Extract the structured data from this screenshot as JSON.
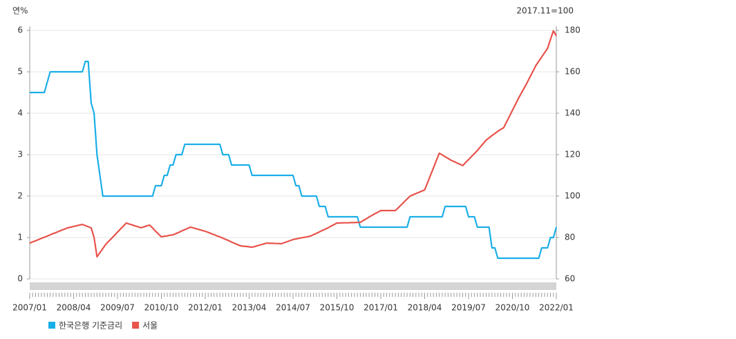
{
  "chart_data": {
    "type": "line",
    "y_label": "연%",
    "y2_label": "2017.11=100",
    "categories": [
      "2007/01",
      null,
      null,
      null,
      null,
      null,
      null,
      null,
      null,
      null,
      null,
      null,
      null,
      null,
      null,
      "2008/04",
      null,
      null,
      null,
      null,
      null,
      null,
      null,
      null,
      null,
      null,
      null,
      null,
      null,
      null,
      "2009/07",
      null,
      null,
      null,
      null,
      null,
      null,
      null,
      null,
      null,
      null,
      null,
      null,
      null,
      null,
      "2010/10",
      null,
      null,
      null,
      null,
      null,
      null,
      null,
      null,
      null,
      null,
      null,
      null,
      null,
      null,
      "2012/01",
      null,
      null,
      null,
      null,
      null,
      null,
      null,
      null,
      null,
      null,
      null,
      null,
      null,
      null,
      "2013/04",
      null,
      null,
      null,
      null,
      null,
      null,
      null,
      null,
      null,
      null,
      null,
      null,
      null,
      null,
      "2014/07",
      null,
      null,
      null,
      null,
      null,
      null,
      null,
      null,
      null,
      null,
      null,
      null,
      null,
      null,
      "2015/10",
      null,
      null,
      null,
      null,
      null,
      null,
      null,
      null,
      null,
      null,
      null,
      null,
      null,
      null,
      "2017/01",
      null,
      null,
      null,
      null,
      null,
      null,
      null,
      null,
      null,
      null,
      null,
      null,
      null,
      null,
      "2018/04",
      null,
      null,
      null,
      null,
      null,
      null,
      null,
      null,
      null,
      null,
      null,
      null,
      null,
      null,
      "2019/07",
      null,
      null,
      null,
      null,
      null,
      null,
      null,
      null,
      null,
      null,
      null,
      null,
      null,
      null,
      "2020/10",
      null,
      null,
      null,
      null,
      null,
      null,
      null,
      null,
      null,
      null,
      null,
      null,
      null,
      null,
      "2022/01"
    ],
    "ylim": [
      0,
      6
    ],
    "yticks": [
      0,
      1,
      2,
      3,
      4,
      5,
      6
    ],
    "y2lim": [
      60,
      180
    ],
    "y2ticks": [
      60,
      80,
      100,
      120,
      140,
      160,
      180
    ],
    "grid": true,
    "legend": "bottom-left",
    "series": [
      {
        "name": "한국은행 기준금리",
        "color": "#1aaee8",
        "values": [
          4.5,
          4.5,
          4.5,
          4.5,
          4.5,
          4.5,
          4.75,
          5,
          5,
          5,
          5,
          5,
          5,
          5,
          5,
          5,
          5,
          5,
          5,
          5.25,
          5.25,
          4.25,
          4,
          3,
          2.5,
          2,
          2,
          2,
          2,
          2,
          2,
          2,
          2,
          2,
          2,
          2,
          2,
          2,
          2,
          2,
          2,
          2,
          2,
          2.25,
          2.25,
          2.25,
          2.5,
          2.5,
          2.75,
          2.75,
          3,
          3,
          3,
          3.25,
          3.25,
          3.25,
          3.25,
          3.25,
          3.25,
          3.25,
          3.25,
          3.25,
          3.25,
          3.25,
          3.25,
          3.25,
          3,
          3,
          3,
          2.75,
          2.75,
          2.75,
          2.75,
          2.75,
          2.75,
          2.75,
          2.5,
          2.5,
          2.5,
          2.5,
          2.5,
          2.5,
          2.5,
          2.5,
          2.5,
          2.5,
          2.5,
          2.5,
          2.5,
          2.5,
          2.5,
          2.25,
          2.25,
          2,
          2,
          2,
          2,
          2,
          2,
          1.75,
          1.75,
          1.75,
          1.5,
          1.5,
          1.5,
          1.5,
          1.5,
          1.5,
          1.5,
          1.5,
          1.5,
          1.5,
          1.5,
          1.25,
          1.25,
          1.25,
          1.25,
          1.25,
          1.25,
          1.25,
          1.25,
          1.25,
          1.25,
          1.25,
          1.25,
          1.25,
          1.25,
          1.25,
          1.25,
          1.25,
          1.5,
          1.5,
          1.5,
          1.5,
          1.5,
          1.5,
          1.5,
          1.5,
          1.5,
          1.5,
          1.5,
          1.5,
          1.75,
          1.75,
          1.75,
          1.75,
          1.75,
          1.75,
          1.75,
          1.75,
          1.5,
          1.5,
          1.5,
          1.25,
          1.25,
          1.25,
          1.25,
          1.25,
          0.75,
          0.75,
          0.5,
          0.5,
          0.5,
          0.5,
          0.5,
          0.5,
          0.5,
          0.5,
          0.5,
          0.5,
          0.5,
          0.5,
          0.5,
          0.5,
          0.5,
          0.75,
          0.75,
          0.75,
          1,
          1,
          1.25
        ]
      },
      {
        "name": "서울",
        "color": "#e8524a",
        "axis": "y2",
        "values": [
          77.3,
          77.9,
          78.4,
          79.0,
          79.6,
          80.1,
          80.7,
          81.3,
          81.9,
          82.4,
          83.0,
          83.6,
          84.1,
          84.7,
          85.0,
          85.3,
          85.7,
          86.0,
          86.3,
          85.8,
          85.2,
          84.7,
          80.0,
          70.7,
          72.7,
          74.7,
          76.7,
          78.2,
          79.6,
          81.1,
          82.6,
          84.1,
          85.5,
          87.0,
          86.5,
          86.1,
          85.6,
          85.2,
          84.7,
          85.1,
          85.6,
          86.0,
          84.6,
          83.1,
          81.7,
          80.3,
          80.6,
          80.8,
          81.1,
          81.3,
          81.9,
          82.5,
          83.2,
          83.8,
          84.4,
          85.0,
          84.6,
          84.2,
          83.8,
          83.4,
          83.0,
          82.5,
          81.9,
          81.4,
          80.8,
          80.3,
          79.7,
          79.1,
          78.5,
          77.8,
          77.2,
          76.6,
          76.0,
          75.8,
          75.7,
          75.5,
          75.3,
          75.7,
          76.1,
          76.5,
          76.9,
          77.3,
          77.2,
          77.2,
          77.1,
          77.1,
          77.0,
          77.5,
          78.0,
          78.5,
          79.0,
          79.3,
          79.6,
          79.9,
          80.1,
          80.4,
          80.7,
          81.4,
          82.0,
          82.7,
          83.4,
          84.0,
          84.7,
          85.5,
          86.2,
          87.0,
          87.0,
          87.1,
          87.1,
          87.1,
          87.2,
          87.2,
          87.3,
          87.3,
          88.2,
          89.0,
          89.9,
          90.7,
          91.5,
          92.2,
          93.0,
          93.0,
          93.0,
          93.0,
          93.0,
          93.0,
          94.4,
          95.8,
          97.2,
          98.6,
          100.0,
          100.6,
          101.2,
          101.8,
          102.4,
          103.0,
          106.5,
          110.1,
          113.6,
          117.2,
          120.7,
          119.9,
          119.0,
          118.2,
          117.3,
          116.7,
          116.0,
          115.4,
          114.7,
          116.2,
          117.6,
          119.1,
          120.5,
          122.0,
          123.7,
          125.3,
          127.0,
          128.1,
          129.2,
          130.2,
          131.3,
          132.2,
          133.0,
          135.8,
          138.6,
          141.4,
          144.2,
          147.0,
          149.6,
          152.1,
          154.7,
          157.5,
          160.2,
          163.0,
          165.1,
          167.2,
          169.2,
          171.3,
          175.6,
          179.8,
          177.3
        ]
      }
    ]
  }
}
